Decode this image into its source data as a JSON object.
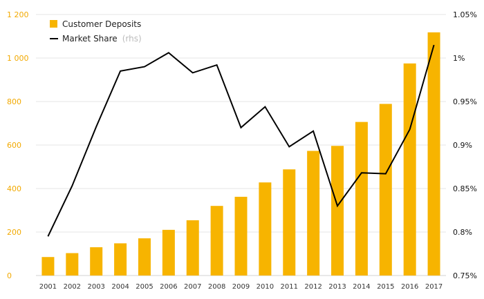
{
  "chart_data": {
    "type": "bar+line",
    "categories": [
      "2001",
      "2002",
      "2003",
      "2004",
      "2005",
      "2006",
      "2007",
      "2008",
      "2009",
      "2010",
      "2011",
      "2012",
      "2013",
      "2014",
      "2015",
      "2016",
      "2017"
    ],
    "series": [
      {
        "name": "Customer Deposits",
        "type": "bar",
        "axis": "left",
        "color": "#f7b400",
        "values": [
          85,
          103,
          130,
          148,
          171,
          210,
          254,
          320,
          362,
          428,
          488,
          573,
          596,
          706,
          789,
          975,
          1118
        ]
      },
      {
        "name": "Market Share",
        "name_note": "(rhs)",
        "type": "line",
        "axis": "right",
        "color": "#000000",
        "values": [
          0.795,
          0.853,
          0.921,
          0.985,
          0.99,
          1.006,
          0.983,
          0.992,
          0.92,
          0.944,
          0.898,
          0.916,
          0.83,
          0.868,
          0.867,
          0.918,
          1.015
        ]
      }
    ],
    "y_left": {
      "range": [
        0,
        1200
      ],
      "ticks": [
        0,
        200,
        400,
        600,
        800,
        1000,
        1200
      ],
      "tick_labels": [
        "0",
        "200",
        "400",
        "600",
        "800",
        "1 000",
        "1 200"
      ],
      "color": "#f2a900"
    },
    "y_right": {
      "range": [
        0.75,
        1.05
      ],
      "ticks": [
        0.75,
        0.8,
        0.85,
        0.9,
        0.95,
        1.0,
        1.05
      ],
      "tick_labels": [
        "0.75%",
        "0.8%",
        "0.85%",
        "0.9%",
        "0.95%",
        "1%",
        "1.05%"
      ],
      "color": "#111111"
    },
    "grid": true,
    "legend_position": "top-left"
  }
}
